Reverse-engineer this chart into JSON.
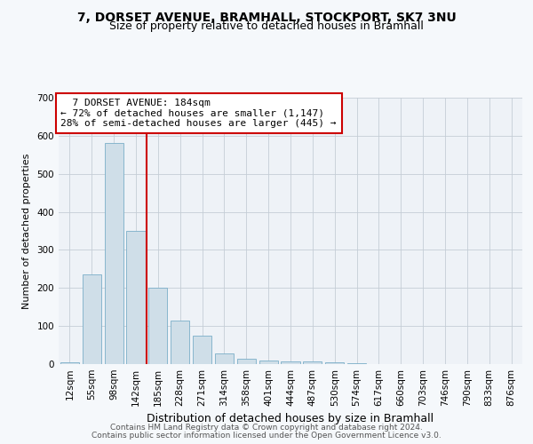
{
  "title1": "7, DORSET AVENUE, BRAMHALL, STOCKPORT, SK7 3NU",
  "title2": "Size of property relative to detached houses in Bramhall",
  "xlabel": "Distribution of detached houses by size in Bramhall",
  "ylabel": "Number of detached properties",
  "categories": [
    "12sqm",
    "55sqm",
    "98sqm",
    "142sqm",
    "185sqm",
    "228sqm",
    "271sqm",
    "314sqm",
    "358sqm",
    "401sqm",
    "444sqm",
    "487sqm",
    "530sqm",
    "574sqm",
    "617sqm",
    "660sqm",
    "703sqm",
    "746sqm",
    "790sqm",
    "833sqm",
    "876sqm"
  ],
  "values": [
    5,
    235,
    580,
    350,
    200,
    115,
    75,
    27,
    15,
    10,
    6,
    6,
    5,
    2,
    0,
    0,
    0,
    0,
    0,
    0,
    0
  ],
  "bar_color": "#cfdee8",
  "bar_edge_color": "#7aaec8",
  "red_line_x": 3.5,
  "annotation_text": "  7 DORSET AVENUE: 184sqm  \n← 72% of detached houses are smaller (1,147)\n28% of semi-detached houses are larger (445) →",
  "annotation_box_color": "#ffffff",
  "annotation_box_edge": "#cc0000",
  "red_line_color": "#cc0000",
  "footer1": "Contains HM Land Registry data © Crown copyright and database right 2024.",
  "footer2": "Contains public sector information licensed under the Open Government Licence v3.0.",
  "ylim": [
    0,
    700
  ],
  "yticks": [
    0,
    100,
    200,
    300,
    400,
    500,
    600,
    700
  ],
  "title1_fontsize": 10,
  "title2_fontsize": 9,
  "xlabel_fontsize": 9,
  "ylabel_fontsize": 8,
  "tick_fontsize": 7.5,
  "footer_fontsize": 6.5,
  "annotation_fontsize": 8,
  "bg_color": "#f5f8fb",
  "plot_bg_color": "#eef2f7"
}
